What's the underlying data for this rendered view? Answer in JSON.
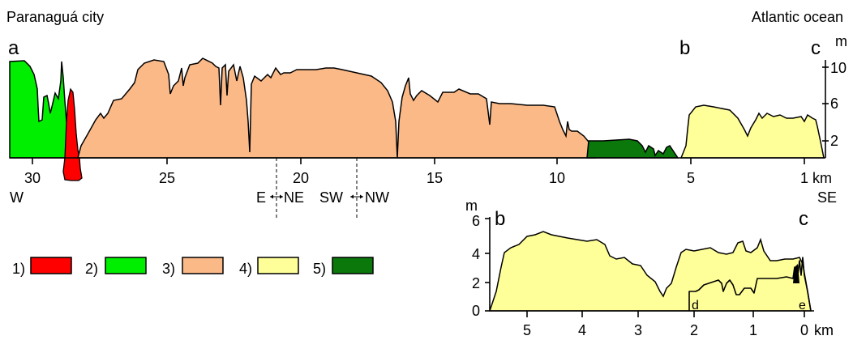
{
  "labels": {
    "top_left": "Paranaguá city",
    "top_right": "Atlantic ocean",
    "point_a": "a",
    "point_b": "b",
    "point_c": "c",
    "point_d": "d",
    "point_e": "e",
    "dir_w": "W",
    "dir_se": "SE",
    "dir_e": "E",
    "dir_ne": "NE",
    "dir_sw": "SW",
    "dir_nw": "NW",
    "km": "km",
    "m": "m"
  },
  "legend": [
    {
      "label": "1)",
      "color": "#ff0000"
    },
    {
      "label": "2)",
      "color": "#00ee00"
    },
    {
      "label": "3)",
      "color": "#fbb987"
    },
    {
      "label": "4)",
      "color": "#ffff99"
    },
    {
      "label": "5)",
      "color": "#0a780a"
    }
  ],
  "main_profile": {
    "x_ticks": [
      "30",
      "25",
      "20",
      "15",
      "10",
      "5",
      "1"
    ],
    "y_ticks": [
      "2",
      "6",
      "10"
    ],
    "x_unit": "km",
    "y_unit": "m"
  },
  "inset_profile": {
    "x_ticks": [
      "5",
      "4",
      "3",
      "2",
      "1",
      "0"
    ],
    "y_ticks": [
      "0",
      "2",
      "4",
      "6"
    ],
    "x_unit": "km",
    "y_unit": "m"
  },
  "colors": {
    "red": "#ff0000",
    "light_green": "#00ee00",
    "orange": "#fbb987",
    "yellow": "#ffff99",
    "dark_green": "#0a780a"
  }
}
